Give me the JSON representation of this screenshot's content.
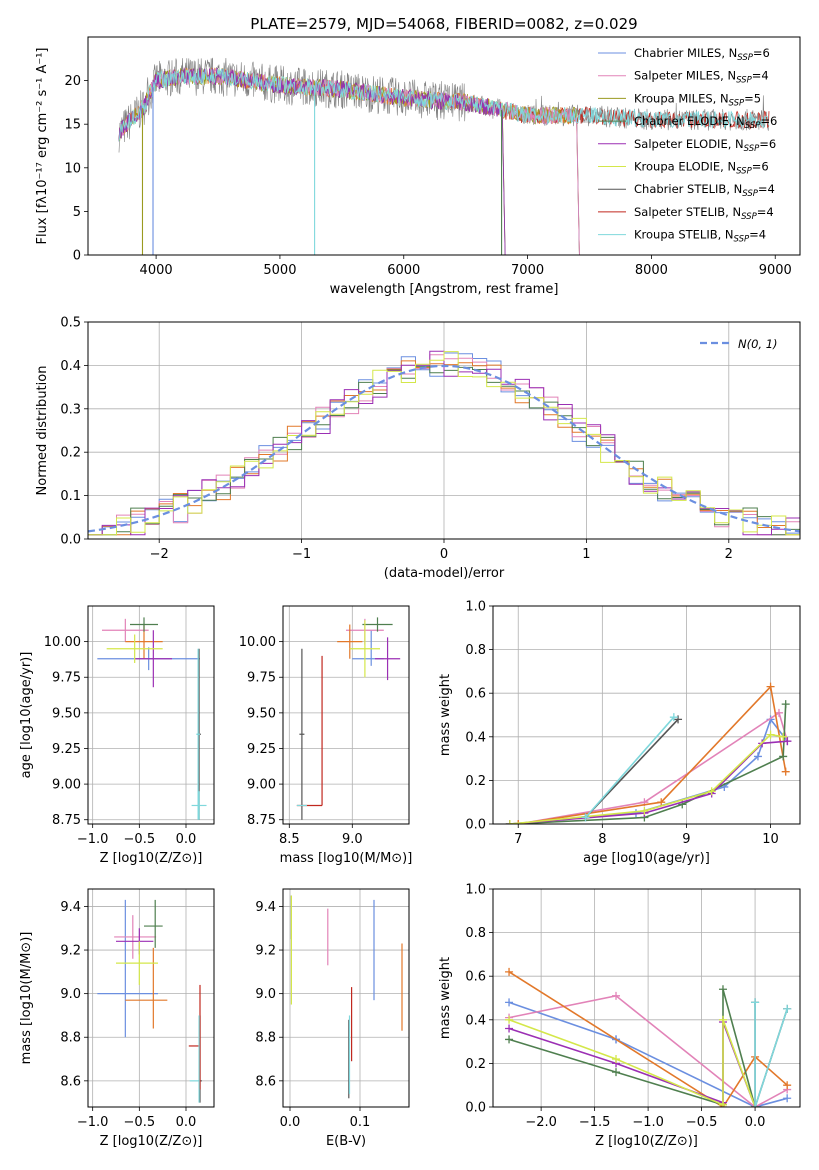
{
  "colors": {
    "chabrier_miles": "#6b8fe0",
    "salpeter_miles": "#e283b8",
    "kroupa_miles": "#9a9a20",
    "chabrier_elodie": "#4f7f4f",
    "salpeter_elodie": "#9b2fb4",
    "kroupa_elodie": "#d4e74a",
    "chabrier_stelib": "#555555",
    "salpeter_stelib": "#c0281f",
    "kroupa_stelib": "#7fd8dc",
    "orange": "#e2782a",
    "spectrum_gray": "#808080"
  },
  "chart_data": [
    {
      "id": "spectrum",
      "type": "line",
      "title": "PLATE=2579, MJD=54068, FIBERID=0082, z=0.029",
      "xlabel": "wavelength [Angstrom, rest frame]",
      "ylabel": "Flux [fλ10⁻¹⁷ erg cm⁻² s⁻¹ A⁻¹]",
      "xlim": [
        3450,
        9200
      ],
      "ylim": [
        0,
        25
      ],
      "xticks": [
        4000,
        5000,
        6000,
        7000,
        8000,
        9000
      ],
      "yticks": [
        0,
        5,
        10,
        15,
        20
      ],
      "grid": false,
      "legend_position": "upper-right",
      "legend": [
        {
          "name": "Chabrier MILES, N",
          "sub": "SSP",
          "eq": "=6",
          "color_key": "chabrier_miles"
        },
        {
          "name": "Salpeter MILES, N",
          "sub": "SSP",
          "eq": "=4",
          "color_key": "salpeter_miles"
        },
        {
          "name": "Kroupa MILES, N",
          "sub": "SSP",
          "eq": "=5",
          "color_key": "kroupa_miles"
        },
        {
          "name": "Chabrier ELODIE, N",
          "sub": "SSP",
          "eq": "=6",
          "color_key": "chabrier_elodie"
        },
        {
          "name": "Salpeter ELODIE, N",
          "sub": "SSP",
          "eq": "=6",
          "color_key": "salpeter_elodie"
        },
        {
          "name": "Kroupa ELODIE, N",
          "sub": "SSP",
          "eq": "=6",
          "color_key": "kroupa_elodie"
        },
        {
          "name": "Chabrier STELIB, N",
          "sub": "SSP",
          "eq": "=4",
          "color_key": "chabrier_stelib"
        },
        {
          "name": "Salpeter STELIB, N",
          "sub": "SSP",
          "eq": "=4",
          "color_key": "salpeter_stelib"
        },
        {
          "name": "Kroupa STELIB, N",
          "sub": "SSP",
          "eq": "=4",
          "color_key": "kroupa_stelib"
        }
      ],
      "data_wavelength_range": [
        3700,
        8950
      ],
      "continuum": [
        [
          3700,
          14.0
        ],
        [
          3800,
          15.5
        ],
        [
          3900,
          17.0
        ],
        [
          4000,
          20.0
        ],
        [
          4200,
          20.5
        ],
        [
          4500,
          20.5
        ],
        [
          5000,
          19.5
        ],
        [
          5500,
          19.0
        ],
        [
          6000,
          18.0
        ],
        [
          6500,
          17.5
        ],
        [
          7000,
          16.0
        ],
        [
          7500,
          16.0
        ],
        [
          8000,
          15.5
        ],
        [
          8500,
          15.5
        ],
        [
          8950,
          15.5
        ]
      ],
      "model_ranges": {
        "miles": [
          3700,
          7400
        ],
        "elodie": [
          3700,
          6800
        ],
        "stelib": [
          3700,
          8950
        ]
      }
    },
    {
      "id": "residuals",
      "type": "histogram",
      "xlabel": "(data-model)/error",
      "ylabel": "Normed distribution",
      "xlim": [
        -2.5,
        2.5
      ],
      "ylim": [
        0,
        0.5
      ],
      "xticks": [
        -2,
        -1,
        0,
        1,
        2
      ],
      "yticks": [
        0.0,
        0.1,
        0.2,
        0.3,
        0.4,
        0.5
      ],
      "grid": true,
      "legend_position": "upper-right",
      "legend": [
        {
          "name": "N(0, 1)",
          "style": "dashed",
          "color_key": "chabrier_miles"
        }
      ],
      "bin_width": 0.1,
      "series_color_keys": [
        "chabrier_miles",
        "salpeter_miles",
        "orange",
        "chabrier_elodie",
        "salpeter_elodie",
        "kroupa_elodie"
      ]
    },
    {
      "id": "age_vs_Z",
      "type": "errorbar",
      "xlabel": "Z [log10(Z/Z⊙)]",
      "ylabel": "age  [log10(age/yr)]",
      "xlim": [
        -1.05,
        0.3
      ],
      "ylim": [
        8.72,
        10.25
      ],
      "xticks": [
        -1.0,
        -0.5,
        0.0
      ],
      "yticks": [
        8.75,
        9.0,
        9.25,
        9.5,
        9.75,
        10.0
      ],
      "grid": true,
      "points": [
        {
          "x": -0.4,
          "xerr": [
            0.55,
            0.55
          ],
          "y": 9.88,
          "yerr": [
            0.08,
            0.08
          ],
          "color_key": "chabrier_miles"
        },
        {
          "x": -0.65,
          "xerr": [
            0.25,
            0.25
          ],
          "y": 10.08,
          "yerr": [
            0.08,
            0.08
          ],
          "color_key": "salpeter_miles"
        },
        {
          "x": -0.45,
          "xerr": [
            0.2,
            0.2
          ],
          "y": 10.0,
          "yerr": [
            0.12,
            0.12
          ],
          "color_key": "orange"
        },
        {
          "x": -0.45,
          "xerr": [
            0.15,
            0.15
          ],
          "y": 10.12,
          "yerr": [
            0.05,
            0.05
          ],
          "color_key": "chabrier_elodie"
        },
        {
          "x": -0.35,
          "xerr": [
            0.2,
            0.2
          ],
          "y": 9.88,
          "yerr": [
            0.2,
            0.2
          ],
          "color_key": "salpeter_elodie"
        },
        {
          "x": -0.55,
          "xerr": [
            0.3,
            0.3
          ],
          "y": 9.95,
          "yerr": [
            0.1,
            0.1
          ],
          "color_key": "kroupa_elodie"
        },
        {
          "x": 0.14,
          "xerr": [
            0.02,
            0.02
          ],
          "y": 9.35,
          "yerr": [
            0.6,
            0.6
          ],
          "color_key": "chabrier_stelib"
        },
        {
          "x": 0.14,
          "xerr": [
            0.08,
            0.08
          ],
          "y": 8.85,
          "yerr": [
            0.1,
            0.1
          ],
          "color_key": "kroupa_stelib"
        },
        {
          "x": 0.13,
          "xerr": [
            0.02,
            0.02
          ],
          "y": 9.35,
          "yerr": [
            0.6,
            0.6
          ],
          "color_key": "kroupa_stelib"
        }
      ]
    },
    {
      "id": "age_vs_mass",
      "type": "errorbar",
      "xlabel": "mass [log10(M/M⊙)]",
      "ylabel": "",
      "xlim": [
        8.45,
        9.45
      ],
      "ylim": [
        8.72,
        10.25
      ],
      "xticks": [
        8.5,
        9.0
      ],
      "yticks": [
        8.75,
        9.0,
        9.25,
        9.5,
        9.75,
        10.0
      ],
      "grid": true,
      "points": [
        {
          "x": 9.15,
          "xerr": [
            0.15,
            0.1
          ],
          "y": 9.88,
          "yerr": [
            0.05,
            0.2
          ],
          "color_key": "chabrier_miles"
        },
        {
          "x": 9.1,
          "xerr": [
            0.15,
            0.15
          ],
          "y": 10.08,
          "yerr": [
            0.1,
            0.08
          ],
          "color_key": "salpeter_miles"
        },
        {
          "x": 8.98,
          "xerr": [
            0.1,
            0.1
          ],
          "y": 10.0,
          "yerr": [
            0.12,
            0.12
          ],
          "color_key": "orange"
        },
        {
          "x": 9.2,
          "xerr": [
            0.12,
            0.12
          ],
          "y": 10.12,
          "yerr": [
            0.05,
            0.05
          ],
          "color_key": "chabrier_elodie"
        },
        {
          "x": 9.28,
          "xerr": [
            0.1,
            0.1
          ],
          "y": 9.88,
          "yerr": [
            0.15,
            0.15
          ],
          "color_key": "salpeter_elodie"
        },
        {
          "x": 9.1,
          "xerr": [
            0.12,
            0.12
          ],
          "y": 9.95,
          "yerr": [
            0.2,
            0.2
          ],
          "color_key": "kroupa_elodie"
        },
        {
          "x": 8.6,
          "xerr": [
            0.02,
            0.02
          ],
          "y": 9.35,
          "yerr": [
            0.6,
            0.6
          ],
          "color_key": "chabrier_stelib"
        },
        {
          "x": 8.76,
          "xerr": [
            0.2,
            0.0
          ],
          "y": 8.85,
          "yerr": [
            0.0,
            1.05
          ],
          "color_key": "salpeter_stelib"
        },
        {
          "x": 8.6,
          "xerr": [
            0.04,
            0.04
          ],
          "y": 8.85,
          "yerr": [
            0.0,
            0.0
          ],
          "color_key": "kroupa_stelib"
        }
      ]
    },
    {
      "id": "weight_vs_age",
      "type": "line",
      "xlabel": "age  [log10(age/yr)]",
      "ylabel": "mass weight",
      "xlim": [
        6.7,
        10.35
      ],
      "ylim": [
        0,
        1.0
      ],
      "xticks": [
        7,
        8,
        9,
        10
      ],
      "yticks": [
        0.0,
        0.2,
        0.4,
        0.6,
        0.8,
        1.0
      ],
      "grid": true,
      "series": [
        {
          "color_key": "chabrier_miles",
          "x": [
            6.9,
            8.4,
            9.45,
            9.85,
            10.0,
            10.2
          ],
          "y": [
            0.0,
            0.05,
            0.17,
            0.31,
            0.48,
            0.38
          ]
        },
        {
          "color_key": "salpeter_miles",
          "x": [
            7.0,
            8.5,
            10.1,
            10.2
          ],
          "y": [
            0.0,
            0.1,
            0.51,
            0.38
          ]
        },
        {
          "color_key": "orange",
          "x": [
            7.0,
            8.7,
            10.0,
            10.18
          ],
          "y": [
            0.0,
            0.1,
            0.63,
            0.24
          ]
        },
        {
          "color_key": "chabrier_elodie",
          "x": [
            6.9,
            8.5,
            8.95,
            10.15,
            10.18
          ],
          "y": [
            0.0,
            0.03,
            0.09,
            0.31,
            0.55
          ]
        },
        {
          "color_key": "salpeter_elodie",
          "x": [
            6.9,
            8.5,
            9.3,
            9.9,
            10.2
          ],
          "y": [
            0.0,
            0.05,
            0.14,
            0.37,
            0.38
          ]
        },
        {
          "color_key": "kroupa_elodie",
          "x": [
            6.9,
            8.5,
            9.3,
            10.0,
            10.15
          ],
          "y": [
            0.0,
            0.06,
            0.15,
            0.41,
            0.4
          ]
        },
        {
          "color_key": "chabrier_stelib",
          "x": [
            7.8,
            8.9
          ],
          "y": [
            0.03,
            0.48
          ]
        },
        {
          "color_key": "kroupa_stelib",
          "x": [
            7.8,
            8.85
          ],
          "y": [
            0.03,
            0.49
          ]
        }
      ]
    },
    {
      "id": "mass_vs_Z",
      "type": "errorbar",
      "xlabel": "Z [log10(Z/Z⊙)]",
      "ylabel": "mass [log10(M/M⊙)]",
      "xlim": [
        -1.05,
        0.3
      ],
      "ylim": [
        8.48,
        9.48
      ],
      "xticks": [
        -1.0,
        -0.5,
        0.0
      ],
      "yticks": [
        8.6,
        8.8,
        9.0,
        9.2,
        9.4
      ],
      "grid": true,
      "points": [
        {
          "x": -0.65,
          "xerr": [
            0.3,
            0.35
          ],
          "y": 9.0,
          "yerr": [
            0.2,
            0.43
          ],
          "color_key": "chabrier_miles"
        },
        {
          "x": -0.57,
          "xerr": [
            0.2,
            0.25
          ],
          "y": 9.26,
          "yerr": [
            0.1,
            0.1
          ],
          "color_key": "salpeter_miles"
        },
        {
          "x": -0.35,
          "xerr": [
            0.3,
            0.15
          ],
          "y": 8.97,
          "yerr": [
            0.13,
            0.24
          ],
          "color_key": "orange"
        },
        {
          "x": -0.33,
          "xerr": [
            0.12,
            0.08
          ],
          "y": 9.31,
          "yerr": [
            0.1,
            0.12
          ],
          "color_key": "chabrier_elodie"
        },
        {
          "x": -0.5,
          "xerr": [
            0.25,
            0.15
          ],
          "y": 9.24,
          "yerr": [
            0.06,
            0.06
          ],
          "color_key": "salpeter_elodie"
        },
        {
          "x": -0.5,
          "xerr": [
            0.25,
            0.2
          ],
          "y": 9.14,
          "yerr": [
            0.1,
            0.1
          ],
          "color_key": "kroupa_elodie"
        },
        {
          "x": 0.15,
          "xerr": [
            0.02,
            0.02
          ],
          "y": 8.6,
          "yerr": [
            0.1,
            0.3
          ],
          "color_key": "chabrier_stelib"
        },
        {
          "x": 0.15,
          "xerr": [
            0.12,
            0.0
          ],
          "y": 8.76,
          "yerr": [
            0.2,
            0.28
          ],
          "color_key": "salpeter_stelib"
        },
        {
          "x": 0.14,
          "xerr": [
            0.1,
            0.0
          ],
          "y": 8.6,
          "yerr": [
            0.1,
            0.3
          ],
          "color_key": "kroupa_stelib"
        }
      ]
    },
    {
      "id": "mass_vs_ebv",
      "type": "errorbar",
      "xlabel": "E(B-V)",
      "ylabel": "",
      "xlim": [
        -0.01,
        0.17
      ],
      "ylim": [
        8.48,
        9.48
      ],
      "xticks": [
        0.0,
        0.1
      ],
      "yticks": [
        8.6,
        8.8,
        9.0,
        9.2,
        9.4
      ],
      "grid": true,
      "points": [
        {
          "x": 0.12,
          "y": 9.2,
          "yerr": [
            0.23,
            0.23
          ],
          "color_key": "chabrier_miles"
        },
        {
          "x": 0.054,
          "y": 9.26,
          "yerr": [
            0.13,
            0.13
          ],
          "color_key": "salpeter_miles"
        },
        {
          "x": 0.16,
          "y": 9.03,
          "yerr": [
            0.2,
            0.2
          ],
          "color_key": "orange"
        },
        {
          "x": 0.002,
          "y": 9.35,
          "yerr": [
            0.1,
            0.1
          ],
          "color_key": "chabrier_elodie"
        },
        {
          "x": 0.002,
          "y": 9.2,
          "yerr": [
            0.25,
            0.25
          ],
          "color_key": "kroupa_elodie"
        },
        {
          "x": 0.084,
          "y": 8.7,
          "yerr": [
            0.18,
            0.18
          ],
          "color_key": "chabrier_stelib"
        },
        {
          "x": 0.088,
          "y": 8.86,
          "yerr": [
            0.17,
            0.17
          ],
          "color_key": "salpeter_stelib"
        },
        {
          "x": 0.085,
          "y": 8.72,
          "yerr": [
            0.18,
            0.18
          ],
          "color_key": "kroupa_stelib"
        }
      ]
    },
    {
      "id": "weight_vs_Z",
      "type": "line",
      "xlabel": "Z [log10(Z/Z⊙)]",
      "ylabel": "mass weight",
      "xlim": [
        -2.45,
        0.42
      ],
      "ylim": [
        0,
        1.0
      ],
      "xticks": [
        -2.0,
        -1.5,
        -1.0,
        -0.5,
        0.0
      ],
      "yticks": [
        0.0,
        0.2,
        0.4,
        0.6,
        0.8,
        1.0
      ],
      "grid": true,
      "series": [
        {
          "color_key": "chabrier_miles",
          "x": [
            -2.3,
            -1.3,
            -1.3,
            0.0,
            0.3
          ],
          "y": [
            0.48,
            0.31,
            0.31,
            0.0,
            0.04
          ]
        },
        {
          "color_key": "salpeter_miles",
          "x": [
            -2.3,
            -1.3,
            0.0,
            0.3
          ],
          "y": [
            0.41,
            0.51,
            0.0,
            0.08
          ]
        },
        {
          "color_key": "orange",
          "x": [
            -2.3,
            -0.3,
            0.0,
            0.3
          ],
          "y": [
            0.62,
            0.0,
            0.23,
            0.1
          ]
        },
        {
          "color_key": "chabrier_elodie",
          "x": [
            -2.3,
            -1.3,
            -0.3,
            -0.3,
            0.0
          ],
          "y": [
            0.31,
            0.16,
            0.01,
            0.54,
            0.0
          ]
        },
        {
          "color_key": "salpeter_elodie",
          "x": [
            -2.3,
            -1.3,
            -0.3,
            -0.3,
            0.0
          ],
          "y": [
            0.36,
            0.2,
            0.02,
            0.39,
            0.0
          ]
        },
        {
          "color_key": "kroupa_elodie",
          "x": [
            -2.3,
            -1.3,
            -0.3,
            -0.3,
            0.0
          ],
          "y": [
            0.4,
            0.22,
            0.01,
            0.4,
            0.0
          ]
        },
        {
          "color_key": "chabrier_stelib",
          "x": [
            0.0,
            0.0,
            0.3
          ],
          "y": [
            0.48,
            0.0,
            0.45
          ]
        },
        {
          "color_key": "kroupa_stelib",
          "x": [
            0.0,
            0.0,
            0.3
          ],
          "y": [
            0.48,
            0.0,
            0.45
          ]
        }
      ]
    }
  ]
}
